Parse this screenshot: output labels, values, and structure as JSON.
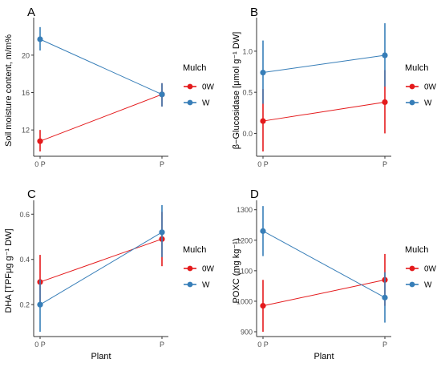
{
  "figure": {
    "panels": [
      {
        "id": "A",
        "label": "A"
      },
      {
        "id": "B",
        "label": "B"
      },
      {
        "id": "C",
        "label": "C"
      },
      {
        "id": "D",
        "label": "D"
      }
    ]
  },
  "colors": {
    "0W": "#e41a1c",
    "W": "#377eb8",
    "axis": "#333333",
    "tick_text": "#4d4d4d"
  },
  "chart_data": [
    {
      "panel": "A",
      "type": "line",
      "title": "",
      "xlabel": "",
      "ylabel": "Soil moisture content, m/m%",
      "categories": [
        "0 P",
        "P"
      ],
      "yticks": [
        12,
        16,
        20
      ],
      "ylim": [
        9.7,
        23.5
      ],
      "legend": {
        "title": "Mulch",
        "entries": [
          "0W",
          "W"
        ],
        "placement": "right"
      },
      "series": [
        {
          "name": "0W",
          "values": [
            10.8,
            15.8
          ],
          "errors": [
            [
              9.7,
              12.0
            ],
            [
              14.5,
              17.0
            ]
          ]
        },
        {
          "name": "W",
          "values": [
            21.7,
            15.8
          ],
          "errors": [
            [
              20.5,
              23.0
            ],
            [
              14.5,
              17.0
            ]
          ]
        }
      ]
    },
    {
      "panel": "B",
      "type": "line",
      "title": "",
      "xlabel": "",
      "ylabel": "β−Glucosidase  [μmol g⁻¹ DW]",
      "categories": [
        "0 P",
        "P"
      ],
      "yticks": [
        "0.0",
        "0.5",
        "1.0"
      ],
      "ylim": [
        -0.22,
        1.35
      ],
      "legend": {
        "title": "Mulch",
        "entries": [
          "0W",
          "W"
        ],
        "placement": "right"
      },
      "series": [
        {
          "name": "0W",
          "values": [
            0.15,
            0.38
          ],
          "errors": [
            [
              -0.22,
              0.54
            ],
            [
              0.0,
              0.77
            ]
          ]
        },
        {
          "name": "W",
          "values": [
            0.74,
            0.95
          ],
          "errors": [
            [
              0.36,
              1.13
            ],
            [
              0.57,
              1.34
            ]
          ]
        }
      ]
    },
    {
      "panel": "C",
      "type": "line",
      "title": "",
      "xlabel": "Plant",
      "ylabel": "DHA [TPFμg g⁻¹ DW]",
      "categories": [
        "0 P",
        "P"
      ],
      "yticks": [
        "0.2",
        "0.4",
        "0.6"
      ],
      "ylim": [
        0.08,
        0.64
      ],
      "legend": {
        "title": "Mulch",
        "entries": [
          "0W",
          "W"
        ],
        "placement": "right"
      },
      "series": [
        {
          "name": "0W",
          "values": [
            0.3,
            0.49
          ],
          "errors": [
            [
              0.19,
              0.42
            ],
            [
              0.37,
              0.61
            ]
          ]
        },
        {
          "name": "W",
          "values": [
            0.2,
            0.52
          ],
          "errors": [
            [
              0.08,
              0.31
            ],
            [
              0.41,
              0.64
            ]
          ]
        }
      ]
    },
    {
      "panel": "D",
      "type": "line",
      "title": "",
      "xlabel": "Plant",
      "ylabel": "POXC  (mg kg⁻¹)",
      "categories": [
        "0 P",
        "P"
      ],
      "yticks": [
        900,
        1000,
        1100,
        1200,
        1300
      ],
      "ylim": [
        900,
        1315
      ],
      "legend": {
        "title": "Mulch",
        "entries": [
          "0W",
          "W"
        ],
        "placement": "right"
      },
      "series": [
        {
          "name": "0W",
          "values": [
            985,
            1070
          ],
          "errors": [
            [
              900,
              1070
            ],
            [
              985,
              1155
            ]
          ]
        },
        {
          "name": "W",
          "values": [
            1230,
            1012
          ],
          "errors": [
            [
              1148,
              1312
            ],
            [
              930,
              1095
            ]
          ]
        }
      ]
    }
  ]
}
